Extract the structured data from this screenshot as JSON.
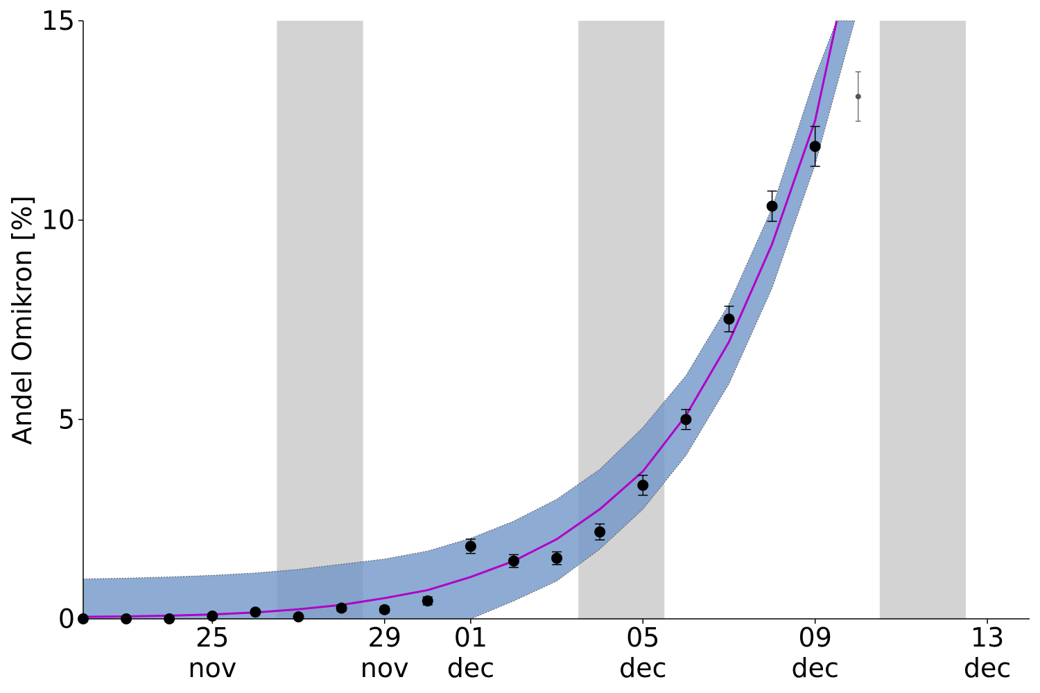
{
  "chart_data": {
    "type": "line",
    "ylabel": "Andel Omikron [%]",
    "ylim": [
      0,
      15
    ],
    "xlim": [
      "2021-11-22",
      "2021-12-14"
    ],
    "yticks": [
      {
        "value": 0,
        "label": "0"
      },
      {
        "value": 5,
        "label": "5"
      },
      {
        "value": 10,
        "label": "10"
      },
      {
        "value": 15,
        "label": "15"
      }
    ],
    "xticks": [
      {
        "date": "2021-11-25",
        "day": "25",
        "month": "nov"
      },
      {
        "date": "2021-11-29",
        "day": "29",
        "month": "nov"
      },
      {
        "date": "2021-12-01",
        "day": "01",
        "month": "dec"
      },
      {
        "date": "2021-12-05",
        "day": "05",
        "month": "dec"
      },
      {
        "date": "2021-12-09",
        "day": "09",
        "month": "dec"
      },
      {
        "date": "2021-12-13",
        "day": "13",
        "month": "dec"
      }
    ],
    "weekend_spans": [
      {
        "start": "2021-11-26T12:00",
        "end": "2021-11-28T12:00"
      },
      {
        "start": "2021-12-03T12:00",
        "end": "2021-12-05T12:00"
      },
      {
        "start": "2021-12-10T12:00",
        "end": "2021-12-12T12:00"
      }
    ],
    "fit_line": {
      "color": "#b000c8",
      "x": [
        "2021-11-22",
        "2021-11-23",
        "2021-11-24",
        "2021-11-25",
        "2021-11-26",
        "2021-11-27",
        "2021-11-28",
        "2021-11-29",
        "2021-11-30",
        "2021-12-01",
        "2021-12-02",
        "2021-12-03",
        "2021-12-04",
        "2021-12-05",
        "2021-12-06",
        "2021-12-07",
        "2021-12-08",
        "2021-12-09",
        "2021-12-09T12:00"
      ],
      "y": [
        0.05,
        0.06,
        0.08,
        0.11,
        0.16,
        0.24,
        0.35,
        0.52,
        0.72,
        1.05,
        1.45,
        2.0,
        2.75,
        3.7,
        5.1,
        6.95,
        9.4,
        12.5,
        15.0
      ]
    },
    "confidence_band": {
      "color": "#7096c8",
      "x": [
        "2021-11-22",
        "2021-11-23",
        "2021-11-24",
        "2021-11-25",
        "2021-11-26",
        "2021-11-27",
        "2021-11-28",
        "2021-11-29",
        "2021-11-30",
        "2021-12-01",
        "2021-12-02",
        "2021-12-03",
        "2021-12-04",
        "2021-12-05",
        "2021-12-06",
        "2021-12-07",
        "2021-12-08",
        "2021-12-09",
        "2021-12-09T12:00"
      ],
      "upper": [
        1.0,
        1.02,
        1.05,
        1.09,
        1.15,
        1.24,
        1.37,
        1.5,
        1.7,
        2.02,
        2.45,
        3.0,
        3.75,
        4.8,
        6.1,
        7.9,
        10.3,
        13.6,
        15.0
      ],
      "lower": [
        0.0,
        0.0,
        0.0,
        0.0,
        0.0,
        0.0,
        0.0,
        0.0,
        0.0,
        0.0,
        0.45,
        0.95,
        1.75,
        2.75,
        4.1,
        5.9,
        8.3,
        11.4,
        15.0
      ],
      "upper_x_end": "2021-12-09T12:00",
      "lower_x_end": "2021-12-09T22:00"
    },
    "observations": {
      "color": "#000000",
      "points": [
        {
          "date": "2021-11-22",
          "y": 0.0,
          "err": 0.02
        },
        {
          "date": "2021-11-23",
          "y": 0.0,
          "err": 0.02
        },
        {
          "date": "2021-11-24",
          "y": 0.0,
          "err": 0.03
        },
        {
          "date": "2021-11-25",
          "y": 0.07,
          "err": 0.04
        },
        {
          "date": "2021-11-26",
          "y": 0.17,
          "err": 0.06
        },
        {
          "date": "2021-11-27",
          "y": 0.05,
          "err": 0.04
        },
        {
          "date": "2021-11-28",
          "y": 0.27,
          "err": 0.08
        },
        {
          "date": "2021-11-29",
          "y": 0.23,
          "err": 0.08
        },
        {
          "date": "2021-11-30",
          "y": 0.45,
          "err": 0.1
        },
        {
          "date": "2021-12-01",
          "y": 1.82,
          "err": 0.18
        },
        {
          "date": "2021-12-02",
          "y": 1.45,
          "err": 0.16
        },
        {
          "date": "2021-12-03",
          "y": 1.52,
          "err": 0.16
        },
        {
          "date": "2021-12-04",
          "y": 2.18,
          "err": 0.2
        },
        {
          "date": "2021-12-05",
          "y": 3.35,
          "err": 0.25
        },
        {
          "date": "2021-12-06",
          "y": 5.0,
          "err": 0.25
        },
        {
          "date": "2021-12-07",
          "y": 7.52,
          "err": 0.32
        },
        {
          "date": "2021-12-08",
          "y": 10.35,
          "err": 0.38
        },
        {
          "date": "2021-12-09",
          "y": 11.85,
          "err": 0.5
        }
      ]
    },
    "incomplete_observation": {
      "date": "2021-12-10",
      "y": 13.1,
      "err": 0.62,
      "color": "#555555"
    }
  }
}
